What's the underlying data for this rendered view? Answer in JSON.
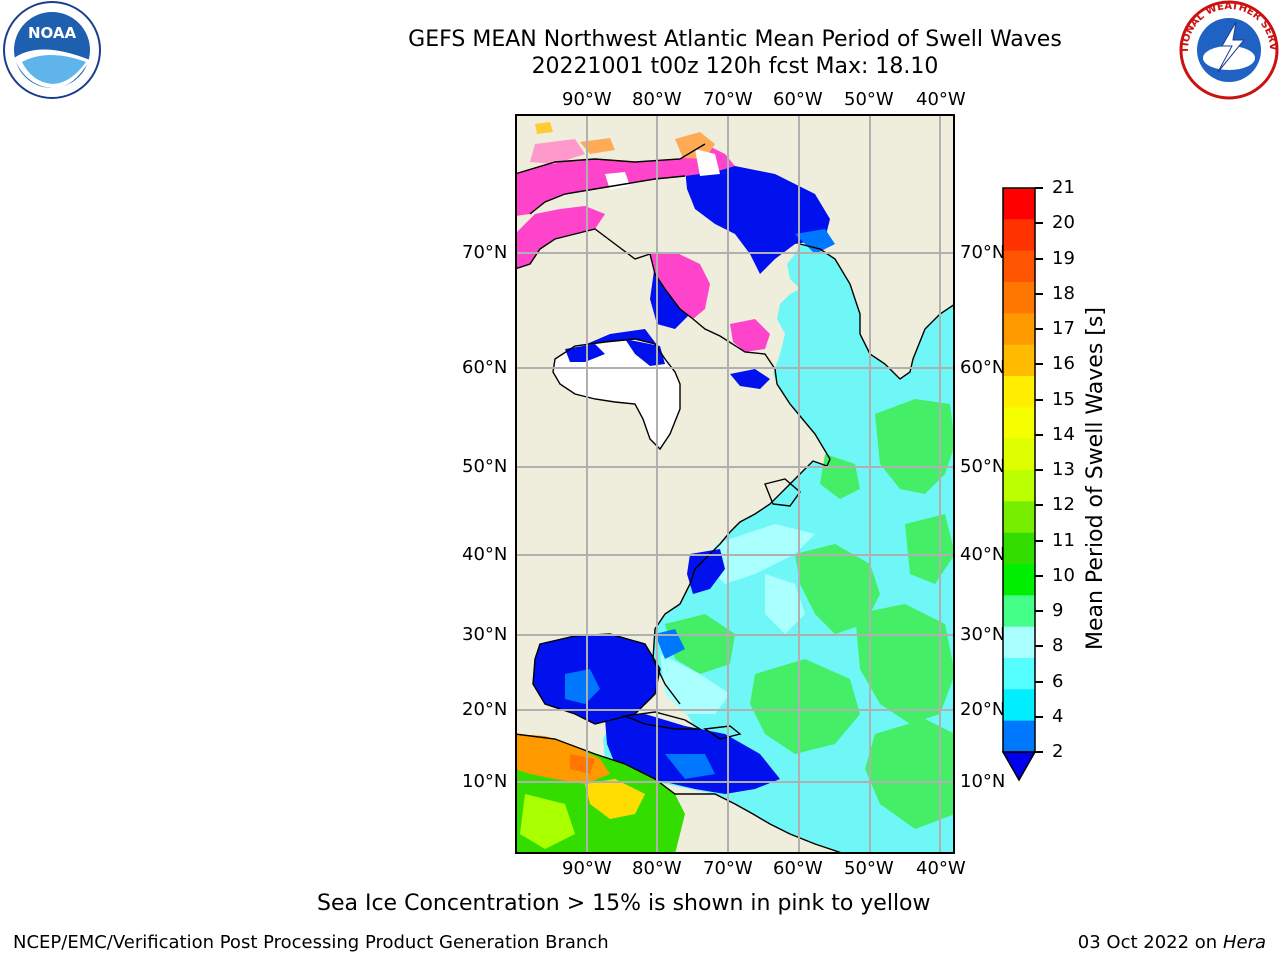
{
  "header": {
    "title_line1": "GEFS MEAN Northwest Atlantic Mean Period of Swell Waves",
    "title_line2": "20221001 t00z 120h fcst   Max: 18.10"
  },
  "logos": {
    "left": "noara-logo",
    "left_text": "NOAA",
    "right": "nws-logo",
    "right_text": "NATIONAL WEATHER SERVICE"
  },
  "map": {
    "lon_labels": [
      "90°W",
      "80°W",
      "70°W",
      "60°W",
      "50°W",
      "40°W"
    ],
    "lat_labels": [
      "70°N",
      "60°N",
      "50°N",
      "40°N",
      "30°N",
      "20°N",
      "10°N"
    ],
    "land_color": "#efeedc",
    "grid_color": "#b0b0b0"
  },
  "colorbar": {
    "label": "Mean Period of Swell Waves [s]",
    "ticks": [
      "21",
      "20",
      "19",
      "18",
      "17",
      "16",
      "15",
      "14",
      "13",
      "12",
      "11",
      "10",
      "9",
      "8",
      "6",
      "4",
      "2"
    ],
    "colors": [
      "#ff0000",
      "#ff3300",
      "#ff5500",
      "#ff7700",
      "#ff9900",
      "#ffbb00",
      "#ffee00",
      "#f5ff00",
      "#ddff00",
      "#bbff00",
      "#77ee00",
      "#33dd00",
      "#00ee00",
      "#44ff88",
      "#aaffff",
      "#55ffff",
      "#00eeff",
      "#0077ff"
    ],
    "under_color": "#0000ee"
  },
  "caption": "Sea Ice Concentration > 15% is shown in pink to yellow",
  "footer": {
    "left": "NCEP/EMC/Verification Post Processing Product Generation Branch",
    "date": "03 Oct 2022 on ",
    "host": "Hera"
  }
}
